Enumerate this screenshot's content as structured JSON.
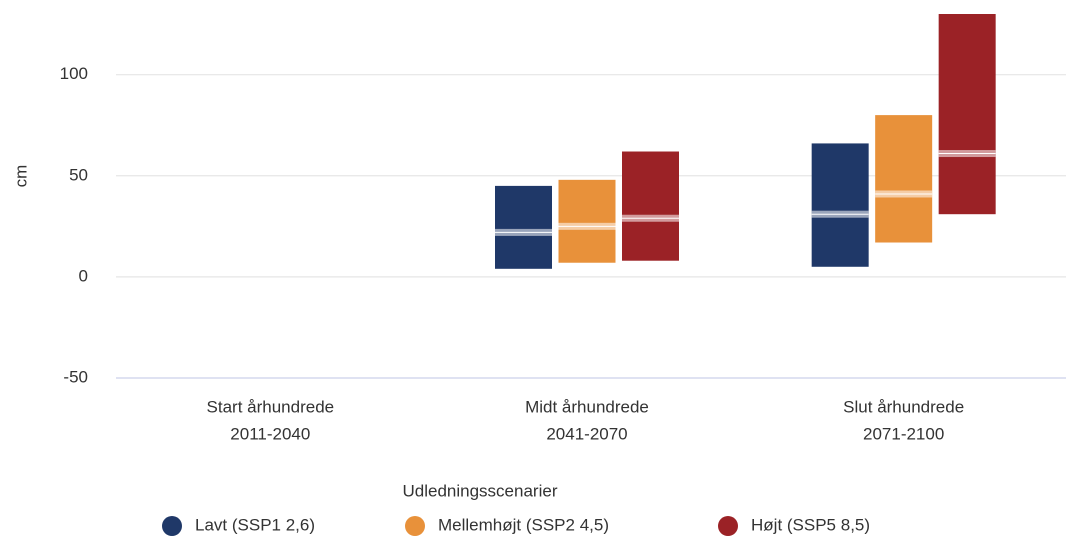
{
  "chart_data": {
    "type": "range_bar",
    "y_label": "cm",
    "categories": [
      [
        "Start århundrede",
        "2011-2040"
      ],
      [
        "Midt århundrede",
        "2041-2070"
      ],
      [
        "Slut århundrede",
        "2071-2100"
      ]
    ],
    "series": [
      {
        "name": "Lavt (SSP1 2,6)",
        "color": "#1f3868",
        "low": [
          null,
          4,
          5
        ],
        "high": [
          null,
          45,
          66
        ],
        "median": [
          null,
          22,
          31
        ]
      },
      {
        "name": "Mellemhøjt (SSP2 4,5)",
        "color": "#e8913a",
        "low": [
          null,
          7,
          17
        ],
        "high": [
          null,
          48,
          80
        ],
        "median": [
          null,
          25,
          41
        ]
      },
      {
        "name": "Højt (SSP5 8,5)",
        "color": "#9b2226",
        "low": [
          null,
          8,
          31
        ],
        "high": [
          null,
          62,
          130
        ],
        "median": [
          null,
          29,
          61
        ]
      }
    ],
    "ylim": [
      -50,
      130
    ],
    "yticks": [
      -50,
      0,
      50,
      100
    ],
    "grid": true,
    "legend_title": "Udledningsscenarier",
    "legend_position": "bottom"
  }
}
